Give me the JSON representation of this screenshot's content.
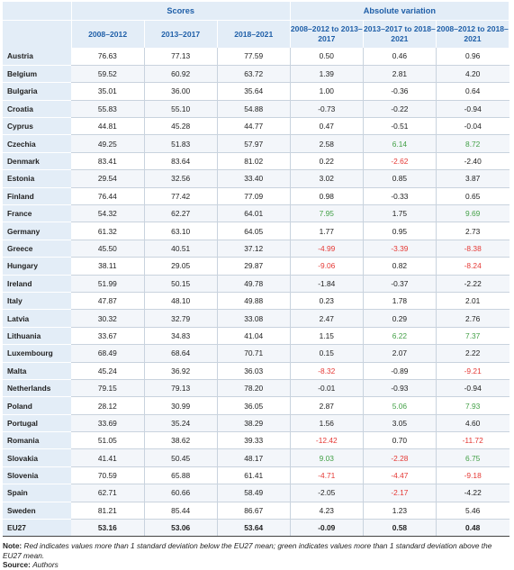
{
  "header": {
    "group_scores": "Scores",
    "group_variation": "Absolute variation",
    "columns": [
      "2008–2012",
      "2013–2017",
      "2018–2021",
      "2008–2012 to 2013–2017",
      "2013–2017 to 2018–2021",
      "2008–2012 to 2018–2021"
    ]
  },
  "rows": [
    {
      "country": "Austria",
      "values": [
        "76.63",
        "77.13",
        "77.59",
        "0.50",
        "0.46",
        "0.96"
      ],
      "colors": [
        "",
        "",
        "",
        "",
        "",
        ""
      ]
    },
    {
      "country": "Belgium",
      "values": [
        "59.52",
        "60.92",
        "63.72",
        "1.39",
        "2.81",
        "4.20"
      ],
      "colors": [
        "",
        "",
        "",
        "",
        "",
        ""
      ]
    },
    {
      "country": "Bulgaria",
      "values": [
        "35.01",
        "36.00",
        "35.64",
        "1.00",
        "-0.36",
        "0.64"
      ],
      "colors": [
        "",
        "",
        "",
        "",
        "",
        ""
      ]
    },
    {
      "country": "Croatia",
      "values": [
        "55.83",
        "55.10",
        "54.88",
        "-0.73",
        "-0.22",
        "-0.94"
      ],
      "colors": [
        "",
        "",
        "",
        "",
        "",
        ""
      ]
    },
    {
      "country": "Cyprus",
      "values": [
        "44.81",
        "45.28",
        "44.77",
        "0.47",
        "-0.51",
        "-0.04"
      ],
      "colors": [
        "",
        "",
        "",
        "",
        "",
        ""
      ]
    },
    {
      "country": "Czechia",
      "values": [
        "49.25",
        "51.83",
        "57.97",
        "2.58",
        "6.14",
        "8.72"
      ],
      "colors": [
        "",
        "",
        "",
        "",
        "pos",
        "pos"
      ]
    },
    {
      "country": "Denmark",
      "values": [
        "83.41",
        "83.64",
        "81.02",
        "0.22",
        "-2.62",
        "-2.40"
      ],
      "colors": [
        "",
        "",
        "",
        "",
        "neg",
        ""
      ]
    },
    {
      "country": "Estonia",
      "values": [
        "29.54",
        "32.56",
        "33.40",
        "3.02",
        "0.85",
        "3.87"
      ],
      "colors": [
        "",
        "",
        "",
        "",
        "",
        ""
      ]
    },
    {
      "country": "Finland",
      "values": [
        "76.44",
        "77.42",
        "77.09",
        "0.98",
        "-0.33",
        "0.65"
      ],
      "colors": [
        "",
        "",
        "",
        "",
        "",
        ""
      ]
    },
    {
      "country": "France",
      "values": [
        "54.32",
        "62.27",
        "64.01",
        "7.95",
        "1.75",
        "9.69"
      ],
      "colors": [
        "",
        "",
        "",
        "pos",
        "",
        "pos"
      ]
    },
    {
      "country": "Germany",
      "values": [
        "61.32",
        "63.10",
        "64.05",
        "1.77",
        "0.95",
        "2.73"
      ],
      "colors": [
        "",
        "",
        "",
        "",
        "",
        ""
      ]
    },
    {
      "country": "Greece",
      "values": [
        "45.50",
        "40.51",
        "37.12",
        "-4.99",
        "-3.39",
        "-8.38"
      ],
      "colors": [
        "",
        "",
        "",
        "neg",
        "neg",
        "neg"
      ]
    },
    {
      "country": "Hungary",
      "values": [
        "38.11",
        "29.05",
        "29.87",
        "-9.06",
        "0.82",
        "-8.24"
      ],
      "colors": [
        "",
        "",
        "",
        "neg",
        "",
        "neg"
      ]
    },
    {
      "country": "Ireland",
      "values": [
        "51.99",
        "50.15",
        "49.78",
        "-1.84",
        "-0.37",
        "-2.22"
      ],
      "colors": [
        "",
        "",
        "",
        "",
        "",
        ""
      ]
    },
    {
      "country": "Italy",
      "values": [
        "47.87",
        "48.10",
        "49.88",
        "0.23",
        "1.78",
        "2.01"
      ],
      "colors": [
        "",
        "",
        "",
        "",
        "",
        ""
      ]
    },
    {
      "country": "Latvia",
      "values": [
        "30.32",
        "32.79",
        "33.08",
        "2.47",
        "0.29",
        "2.76"
      ],
      "colors": [
        "",
        "",
        "",
        "",
        "",
        ""
      ]
    },
    {
      "country": "Lithuania",
      "values": [
        "33.67",
        "34.83",
        "41.04",
        "1.15",
        "6.22",
        "7.37"
      ],
      "colors": [
        "",
        "",
        "",
        "",
        "pos",
        "pos"
      ]
    },
    {
      "country": "Luxembourg",
      "values": [
        "68.49",
        "68.64",
        "70.71",
        "0.15",
        "2.07",
        "2.22"
      ],
      "colors": [
        "",
        "",
        "",
        "",
        "",
        ""
      ]
    },
    {
      "country": "Malta",
      "values": [
        "45.24",
        "36.92",
        "36.03",
        "-8.32",
        "-0.89",
        "-9.21"
      ],
      "colors": [
        "",
        "",
        "",
        "neg",
        "",
        "neg"
      ]
    },
    {
      "country": "Netherlands",
      "values": [
        "79.15",
        "79.13",
        "78.20",
        "-0.01",
        "-0.93",
        "-0.94"
      ],
      "colors": [
        "",
        "",
        "",
        "",
        "",
        ""
      ]
    },
    {
      "country": "Poland",
      "values": [
        "28.12",
        "30.99",
        "36.05",
        "2.87",
        "5.06",
        "7.93"
      ],
      "colors": [
        "",
        "",
        "",
        "",
        "pos",
        "pos"
      ]
    },
    {
      "country": "Portugal",
      "values": [
        "33.69",
        "35.24",
        "38.29",
        "1.56",
        "3.05",
        "4.60"
      ],
      "colors": [
        "",
        "",
        "",
        "",
        "",
        ""
      ]
    },
    {
      "country": "Romania",
      "values": [
        "51.05",
        "38.62",
        "39.33",
        "-12.42",
        "0.70",
        "-11.72"
      ],
      "colors": [
        "",
        "",
        "",
        "neg",
        "",
        "neg"
      ]
    },
    {
      "country": "Slovakia",
      "values": [
        "41.41",
        "50.45",
        "48.17",
        "9.03",
        "-2.28",
        "6.75"
      ],
      "colors": [
        "",
        "",
        "",
        "pos",
        "neg",
        "pos"
      ]
    },
    {
      "country": "Slovenia",
      "values": [
        "70.59",
        "65.88",
        "61.41",
        "-4.71",
        "-4.47",
        "-9.18"
      ],
      "colors": [
        "",
        "",
        "",
        "neg",
        "neg",
        "neg"
      ]
    },
    {
      "country": "Spain",
      "values": [
        "62.71",
        "60.66",
        "58.49",
        "-2.05",
        "-2.17",
        "-4.22"
      ],
      "colors": [
        "",
        "",
        "",
        "",
        "neg",
        ""
      ]
    },
    {
      "country": "Sweden",
      "values": [
        "81.21",
        "85.44",
        "86.67",
        "4.23",
        "1.23",
        "5.46"
      ],
      "colors": [
        "",
        "",
        "",
        "",
        "",
        ""
      ]
    }
  ],
  "total": {
    "country": "EU27",
    "values": [
      "53.16",
      "53.06",
      "53.64",
      "-0.09",
      "0.58",
      "0.48"
    ]
  },
  "note": {
    "label": "Note:",
    "text": "Red indicates values more than 1 standard deviation below the EU27 mean; green indicates values more than 1 standard deviation above the EU27 mean.",
    "source_label": "Source:",
    "source_text": "Authors"
  },
  "colors": {
    "negative": "#e53935",
    "positive": "#43a047",
    "header_text": "#1f5fa8",
    "header_bg": "#e3edf7"
  }
}
